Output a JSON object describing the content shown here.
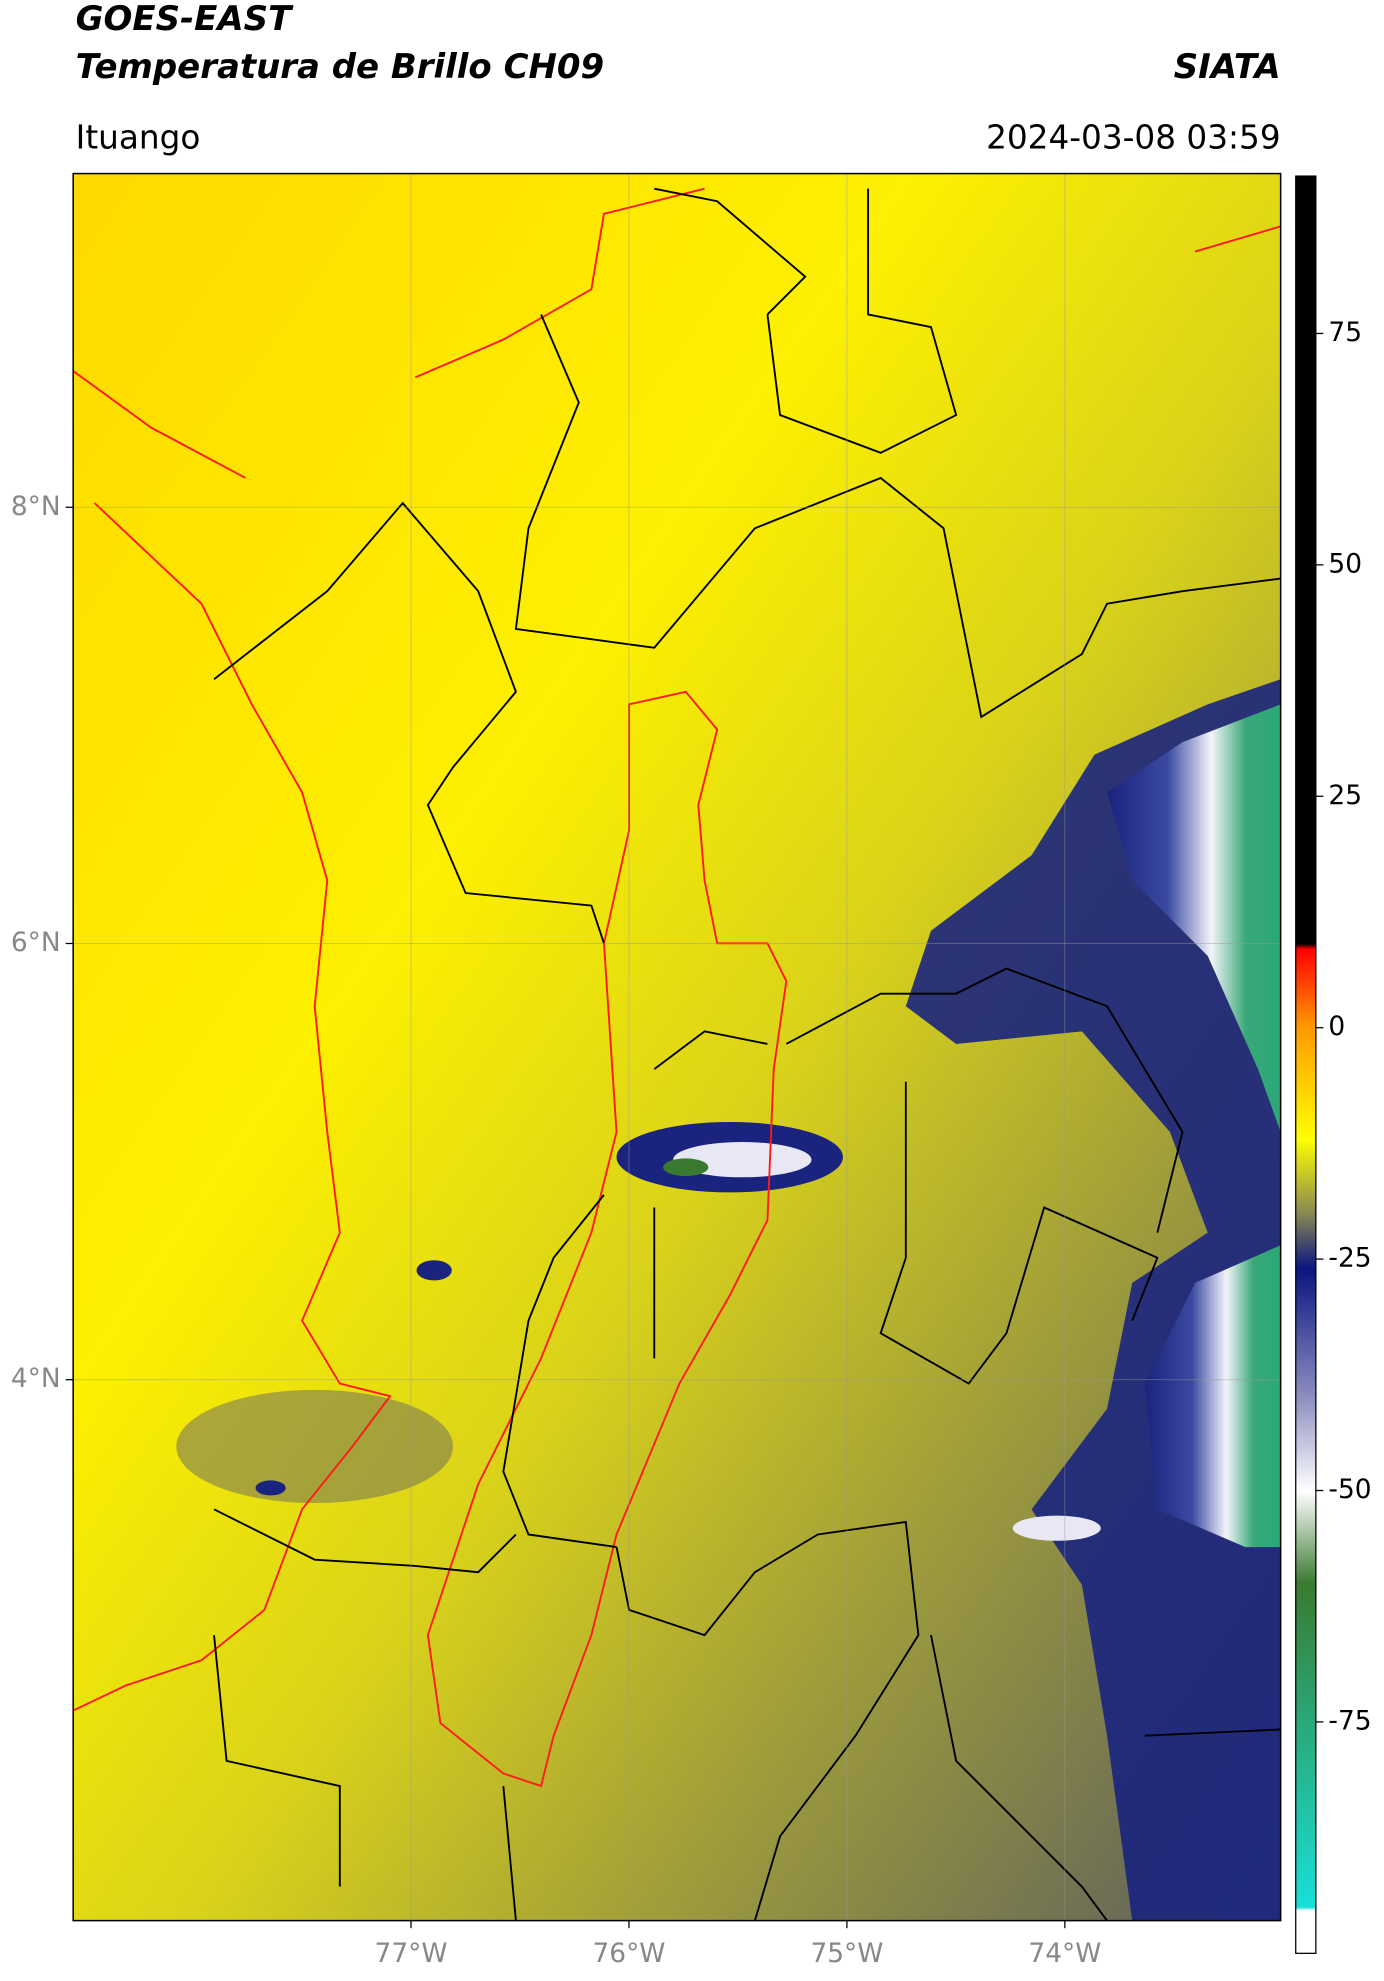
{
  "title": [
    "GOES-EAST",
    "Temperatura de Brillo CH09"
  ],
  "source": "SIATA",
  "region": "Ituango",
  "timestamp": "2024-03-08 03:59",
  "map": {
    "lonlim": [
      -78.55,
      -73.01
    ],
    "latlim": [
      1.52,
      9.53
    ],
    "lonticks": [
      {
        "value": -77,
        "label": "77°W"
      },
      {
        "value": -76,
        "label": "76°W"
      },
      {
        "value": -75,
        "label": "75°W"
      },
      {
        "value": -74,
        "label": "74°W"
      }
    ],
    "latticks": [
      {
        "value": 8,
        "label": "8°N"
      },
      {
        "value": 6,
        "label": "6°N"
      },
      {
        "value": 4,
        "label": "4°N"
      }
    ],
    "grid": true
  },
  "colorbar": {
    "lim": [
      -100,
      92
    ],
    "ticks": [
      75,
      50,
      25,
      0,
      -25,
      -50,
      -75
    ]
  }
}
